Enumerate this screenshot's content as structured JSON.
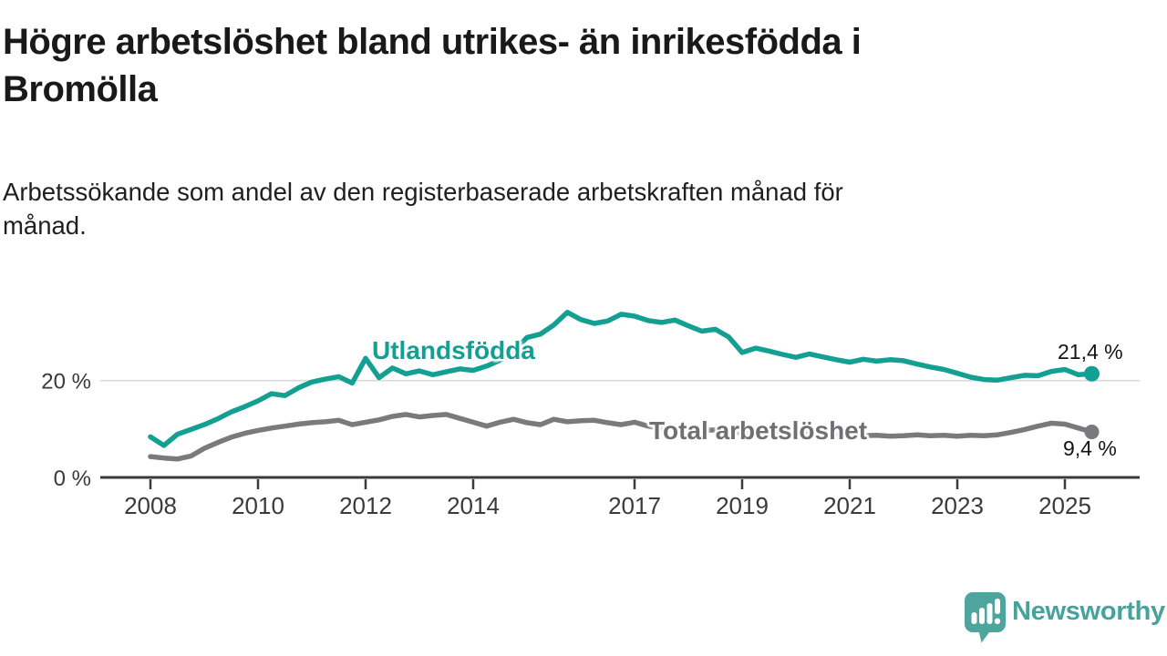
{
  "chart_data": {
    "type": "line",
    "title": "Högre arbetslöshet bland utrikes- än inrikesfödda i\nBromölla",
    "subtitle": "Arbetssökande som andel av den registerbaserade arbetskraften månad för\nmånad.",
    "xlabel": "",
    "ylabel": "",
    "grid": "single horizontal gridline at 20 %",
    "legend_position": "inline labels next to lines",
    "x_start": 2008.0,
    "x_step": 0.25,
    "xlim": [
      2007.1,
      2026.4
    ],
    "ylim": [
      0,
      36
    ],
    "x_ticks": [
      {
        "year": 2008,
        "label": "2008"
      },
      {
        "year": 2010,
        "label": "2010"
      },
      {
        "year": 2012,
        "label": "2012"
      },
      {
        "year": 2014,
        "label": "2014"
      },
      {
        "year": 2017,
        "label": "2017"
      },
      {
        "year": 2019,
        "label": "2019"
      },
      {
        "year": 2021,
        "label": "2021"
      },
      {
        "year": 2023,
        "label": "2023"
      },
      {
        "year": 2025,
        "label": "2025"
      }
    ],
    "y_ticks": [
      {
        "value": 0,
        "label": "0 %"
      },
      {
        "value": 20,
        "label": "20 %"
      }
    ],
    "series": [
      {
        "name": "Utlandsfödda",
        "color": "#13a092",
        "end_label": "21,4 %",
        "end_value": 21.4,
        "values": [
          8.4,
          6.6,
          8.9,
          9.9,
          10.9,
          12.1,
          13.5,
          14.6,
          15.8,
          17.3,
          16.9,
          18.5,
          19.7,
          20.3,
          20.8,
          19.5,
          24.6,
          20.6,
          22.6,
          21.4,
          22.0,
          21.2,
          21.8,
          22.4,
          22.1,
          23.0,
          24.2,
          26.0,
          28.9,
          29.6,
          31.5,
          34.1,
          32.6,
          31.8,
          32.3,
          33.7,
          33.3,
          32.4,
          32.0,
          32.5,
          31.3,
          30.2,
          30.6,
          29.0,
          25.8,
          26.7,
          26.1,
          25.4,
          24.8,
          25.5,
          24.9,
          24.3,
          23.8,
          24.4,
          24.0,
          24.3,
          24.1,
          23.4,
          22.8,
          22.3,
          21.5,
          20.7,
          20.2,
          20.1,
          20.6,
          21.1,
          21.0,
          21.9,
          22.3,
          21.2,
          21.4
        ]
      },
      {
        "name": "Total arbetslöshet",
        "color": "#7a7a7e",
        "end_label": "9,4 %",
        "end_value": 9.4,
        "values": [
          4.3,
          4.0,
          3.8,
          4.4,
          6.0,
          7.2,
          8.3,
          9.1,
          9.7,
          10.2,
          10.6,
          11.0,
          11.3,
          11.5,
          11.8,
          10.9,
          11.4,
          11.9,
          12.6,
          13.0,
          12.5,
          12.8,
          13.0,
          12.2,
          11.4,
          10.6,
          11.4,
          12.0,
          11.3,
          10.9,
          12.0,
          11.5,
          11.7,
          11.8,
          11.3,
          10.9,
          11.4,
          10.6,
          10.1,
          9.9,
          10.0,
          9.7,
          9.8,
          9.5,
          9.2,
          9.4,
          9.1,
          9.0,
          8.9,
          9.3,
          9.2,
          9.0,
          8.8,
          8.6,
          8.7,
          8.5,
          8.6,
          8.8,
          8.6,
          8.7,
          8.5,
          8.7,
          8.6,
          8.8,
          9.3,
          9.9,
          10.6,
          11.2,
          11.0,
          10.2,
          9.4
        ]
      }
    ]
  },
  "footer": {
    "brand": "Newsworthy",
    "brand_color": "#45a39c"
  }
}
